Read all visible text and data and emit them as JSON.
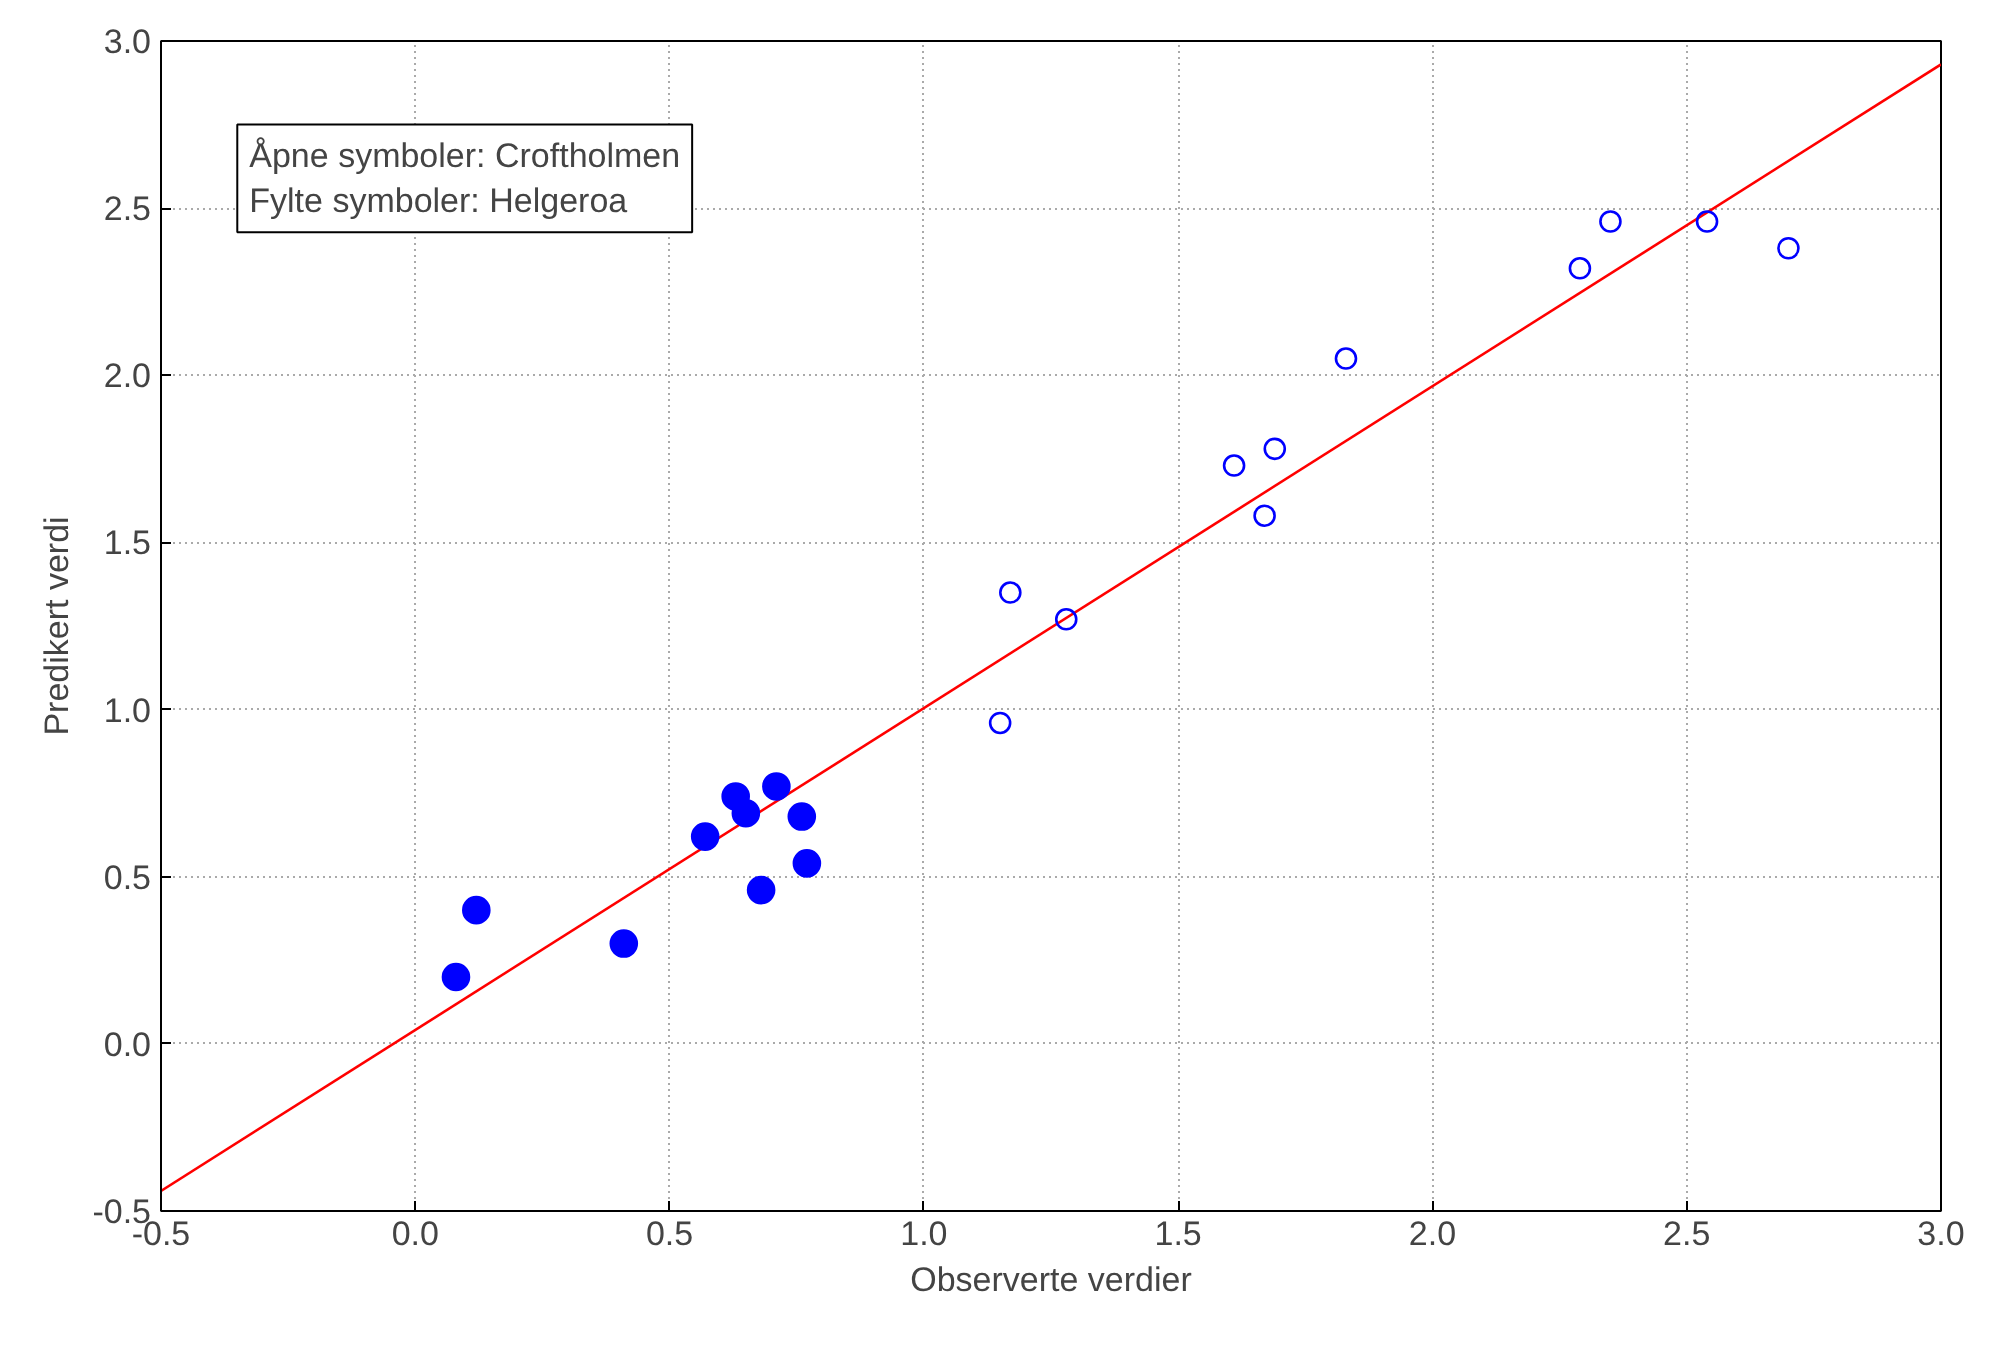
{
  "chart_data": {
    "type": "scatter",
    "xlabel": "Observerte verdier",
    "ylabel": "Predikert verdi",
    "annotations": [
      "Åpne symboler: Croftholmen",
      "Fylte symboler: Helgeroa"
    ],
    "xlim": [
      -0.5,
      3.0
    ],
    "ylim": [
      -0.5,
      3.0
    ],
    "xticks": [
      {
        "value": -0.5,
        "label": "-0.5"
      },
      {
        "value": 0,
        "label": "0.0"
      },
      {
        "value": 0.5,
        "label": "0.5"
      },
      {
        "value": 1,
        "label": "1.0"
      },
      {
        "value": 1.5,
        "label": "1.5"
      },
      {
        "value": 2,
        "label": "2.0"
      },
      {
        "value": 2.5,
        "label": "2.5"
      },
      {
        "value": 3,
        "label": "3.0"
      }
    ],
    "yticks": [
      {
        "value": -0.5,
        "label": "-0.5"
      },
      {
        "value": 0,
        "label": "0.0"
      },
      {
        "value": 0.5,
        "label": "0.5"
      },
      {
        "value": 1,
        "label": "1.0"
      },
      {
        "value": 1.5,
        "label": "1.5"
      },
      {
        "value": 2,
        "label": "2.0"
      },
      {
        "value": 2.5,
        "label": "2.5"
      },
      {
        "value": 3,
        "label": "3.0"
      }
    ],
    "grid": true,
    "series": [
      {
        "type": "line",
        "color": "#ff0000",
        "x": [
          -0.5,
          3.0
        ],
        "values": [
          -0.44,
          2.93
        ]
      },
      {
        "marker": "circle",
        "color": "#0000ff",
        "x": [
          1.15,
          1.17,
          1.28,
          1.61,
          1.67,
          1.69,
          1.83,
          2.29,
          2.35,
          2.54,
          2.7
        ],
        "values": [
          0.96,
          1.35,
          1.27,
          1.73,
          1.58,
          1.78,
          2.05,
          2.32,
          2.46,
          2.46,
          2.38
        ]
      },
      {
        "marker": "circle",
        "color": "#0000ff",
        "x": [
          0.08,
          0.12,
          0.41,
          0.57,
          0.63,
          0.65,
          0.68,
          0.71,
          0.76,
          0.77
        ],
        "values": [
          0.2,
          0.4,
          0.3,
          0.62,
          0.74,
          0.69,
          0.46,
          0.77,
          0.68,
          0.54
        ]
      }
    ]
  }
}
